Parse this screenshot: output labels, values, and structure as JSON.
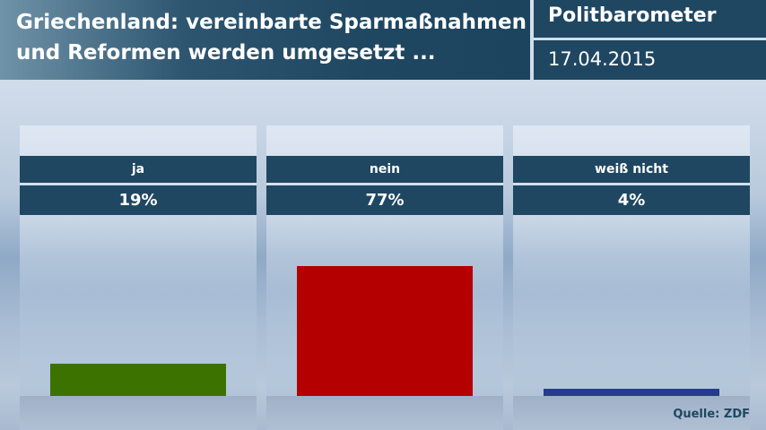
{
  "header": {
    "title_line1": "Griechenland: vereinbarte Sparmaßnahmen",
    "title_line2": "und Reformen werden umgesetzt ...",
    "brand": "Politbarometer",
    "date": "17.04.2015"
  },
  "source": "Quelle: ZDF",
  "chart_data": {
    "type": "bar",
    "title": "Griechenland: vereinbarte Sparmaßnahmen und Reformen werden umgesetzt ...",
    "categories": [
      "ja",
      "nein",
      "weiß nicht"
    ],
    "values": [
      19,
      77,
      4
    ],
    "value_labels": [
      "19%",
      "77%",
      "4%"
    ],
    "colors": [
      "#3c7300",
      "#b50000",
      "#243b8f"
    ],
    "unit": "%",
    "ylim": [
      0,
      100
    ]
  }
}
